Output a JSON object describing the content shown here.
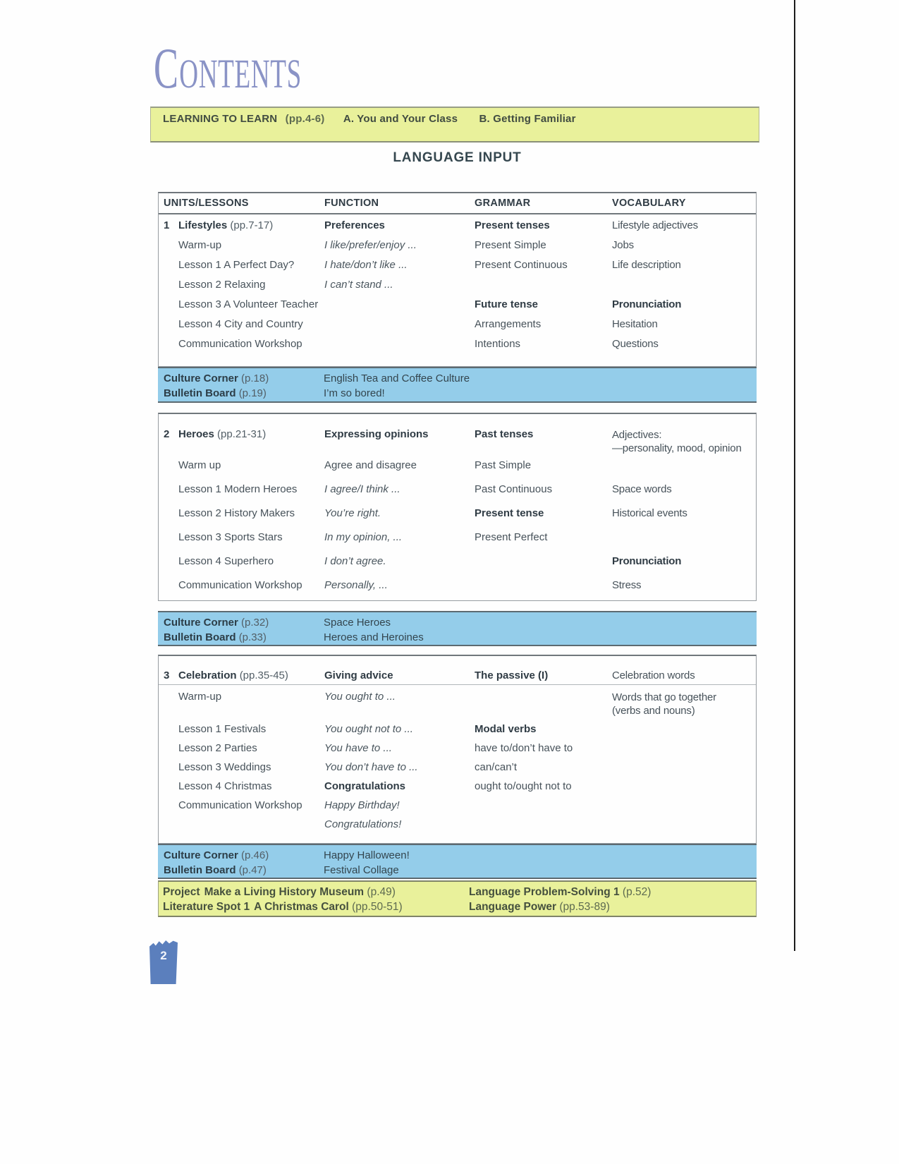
{
  "title": "Contents",
  "banner": {
    "label": "LEARNING TO LEARN",
    "pages": "(pp.4-6)",
    "item_a": "A. You and Your Class",
    "item_b": "B. Getting Familiar"
  },
  "section_heading": "LANGUAGE INPUT",
  "table": {
    "headers": [
      "UNITS/LESSONS",
      "FUNCTION",
      "GRAMMAR",
      "VOCABULARY"
    ],
    "units": [
      {
        "rows": [
          [
            {
              "num": "1",
              "t": "Lifestyles",
              "b": true,
              "pages": "(pp.7-17)"
            },
            {
              "t": "Preferences",
              "b": true
            },
            {
              "t": "Present tenses",
              "b": true
            },
            "Lifestyle adjectives"
          ],
          [
            "Warm-up",
            {
              "t": "I like/prefer/enjoy ...",
              "i": true
            },
            "Present Simple",
            "Jobs"
          ],
          [
            "Lesson 1 A Perfect Day?",
            {
              "t": "I hate/don’t like ...",
              "i": true
            },
            "Present Continuous",
            "Life description"
          ],
          [
            "Lesson 2 Relaxing",
            {
              "t": "I can’t stand ...",
              "i": true
            },
            "",
            ""
          ],
          [
            "Lesson 3 A Volunteer Teacher",
            "",
            {
              "t": "Future tense",
              "b": true
            },
            {
              "t": "Pronunciation",
              "b": true
            }
          ],
          [
            "Lesson 4 City and Country",
            "",
            "Arrangements",
            "Hesitation"
          ],
          [
            "Communication Workshop",
            "",
            "Intentions",
            "Questions"
          ]
        ]
      },
      {
        "rows": [
          [
            {
              "num": "2",
              "t": "Heroes",
              "b": true,
              "pages": "(pp.21-31)"
            },
            {
              "t": "Expressing opinions",
              "b": true
            },
            {
              "t": "Past tenses",
              "b": true
            },
            {
              "lines": [
                "Adjectives:",
                "—personality, mood, opinion"
              ]
            }
          ],
          [
            "Warm up",
            "Agree and disagree",
            "Past Simple",
            ""
          ],
          [
            "Lesson 1 Modern Heroes",
            {
              "t": "I agree/I think ...",
              "i": true
            },
            "Past Continuous",
            "Space words"
          ],
          [
            "Lesson 2 History Makers",
            {
              "t": "You’re right.",
              "i": true
            },
            {
              "t": "Present tense",
              "b": true
            },
            "Historical events"
          ],
          [
            "Lesson 3 Sports Stars",
            {
              "t": "In my opinion, ...",
              "i": true
            },
            "Present Perfect",
            ""
          ],
          [
            "Lesson 4 Superhero",
            {
              "t": "I don’t agree.",
              "i": true
            },
            "",
            {
              "t": "Pronunciation",
              "b": true
            }
          ],
          [
            "Communication Workshop",
            {
              "t": "Personally, ...",
              "i": true
            },
            "",
            "Stress"
          ]
        ]
      },
      {
        "rows": [
          [
            {
              "num": "3",
              "t": "Celebration",
              "b": true,
              "pages": "(pp.35-45)"
            },
            {
              "t": "Giving advice",
              "b": true
            },
            {
              "t": "The passive (I)",
              "b": true
            },
            "Celebration words"
          ],
          [
            "Warm-up",
            {
              "t": "You ought to ...",
              "i": true
            },
            "",
            {
              "lines": [
                "Words that go together",
                "(verbs and nouns)"
              ]
            }
          ],
          [
            "Lesson 1 Festivals",
            {
              "t": "You ought not to ...",
              "i": true
            },
            {
              "t": "Modal verbs",
              "b": true
            },
            ""
          ],
          [
            "Lesson 2 Parties",
            {
              "t": "You have to ...",
              "i": true
            },
            "have to/don’t have to",
            ""
          ],
          [
            "Lesson 3 Weddings",
            {
              "t": "You don’t have to ...",
              "i": true
            },
            "can/can’t",
            ""
          ],
          [
            "Lesson 4 Christmas",
            {
              "t": "Congratulations",
              "b": true
            },
            "ought to/ought not to",
            ""
          ],
          [
            "Communication Workshop",
            {
              "t": "Happy Birthday!",
              "i": true
            },
            "",
            ""
          ],
          [
            "",
            {
              "t": "Congratulations!",
              "i": true
            },
            "",
            ""
          ]
        ]
      }
    ]
  },
  "bands": [
    {
      "rows": [
        {
          "label": "Culture Corner",
          "pages": "(p.18)",
          "content": "English Tea and Coffee Culture"
        },
        {
          "label": "Bulletin Board",
          "pages": "(p.19)",
          "content": "I’m so bored!"
        }
      ]
    },
    {
      "rows": [
        {
          "label": "Culture Corner",
          "pages": "(p.32)",
          "content": "Space Heroes"
        },
        {
          "label": "Bulletin Board",
          "pages": "(p.33)",
          "content": "Heroes and Heroines"
        }
      ]
    },
    {
      "rows": [
        {
          "label": "Culture Corner",
          "pages": "(p.46)",
          "content": "Happy Halloween!"
        },
        {
          "label": "Bulletin Board",
          "pages": "(p.47)",
          "content": "Festival Collage"
        }
      ]
    }
  ],
  "footer_band": {
    "rows": [
      {
        "left_label": "Project",
        "left_title": "Make a Living History Museum",
        "left_pages": "(p.49)",
        "right_label": "Language Problem-Solving 1",
        "right_pages": "(p.52)"
      },
      {
        "left_label": "Literature Spot 1",
        "left_title": "A Christmas Carol",
        "left_pages": "(pp.50-51)",
        "right_label": "Language Power",
        "right_pages": "(pp.53-89)"
      }
    ]
  },
  "page_number": "2"
}
